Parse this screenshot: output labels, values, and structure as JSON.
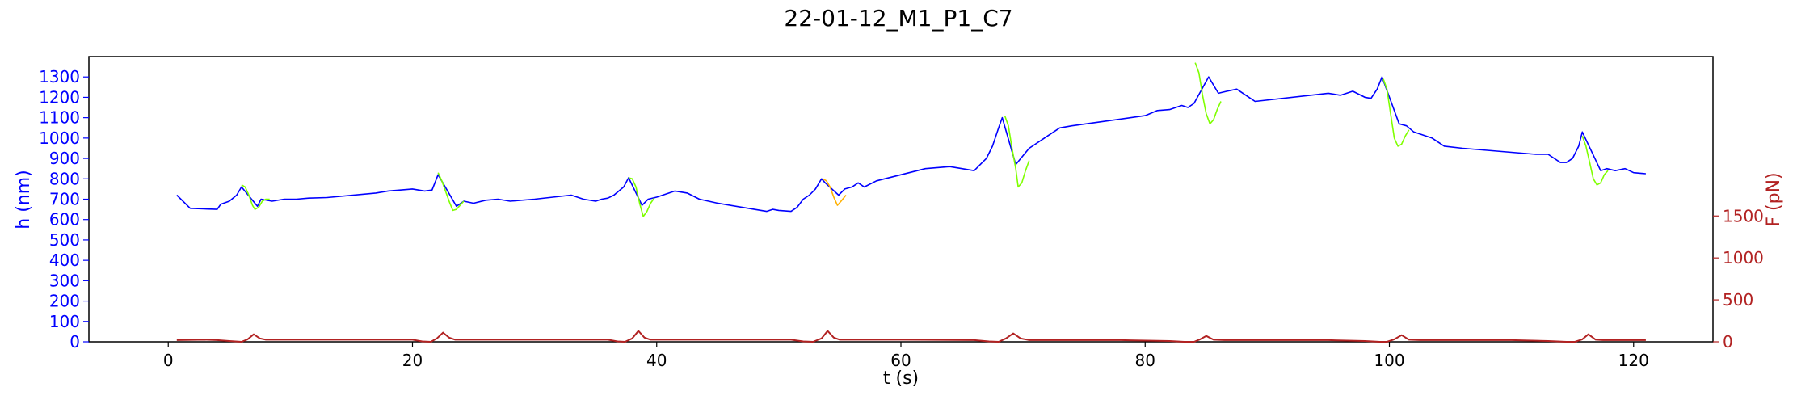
{
  "chart_data": {
    "type": "line",
    "title": "22-01-12_M1_P1_C7",
    "xlabel": "t (s)",
    "ylabel_left": "h (nm)",
    "ylabel_right": "F (pN)",
    "xlim": [
      -6.5,
      126.5
    ],
    "ylim_left": [
      0,
      1400
    ],
    "ylim_right": [
      0,
      3400
    ],
    "x_ticks": [
      0,
      20,
      40,
      60,
      80,
      100,
      120
    ],
    "y_ticks_left": [
      0,
      100,
      200,
      300,
      400,
      500,
      600,
      700,
      800,
      900,
      1000,
      1100,
      1200,
      1300
    ],
    "y_ticks_right": [
      0,
      500,
      1000,
      1500
    ],
    "colors": {
      "height_trace": "#0000ff",
      "approach_segments": "#7fff00",
      "highlighted_segment": "#ffb000",
      "force_trace": "#b22222",
      "left_axis": "#0000ff",
      "right_axis": "#b22222"
    },
    "series": [
      {
        "axis": "left",
        "color": "#0000ff",
        "x": [
          0.7,
          1.8,
          4.0,
          4.3,
          5.0,
          5.6,
          6.0,
          7.3,
          7.6,
          8.5,
          9.5,
          10.5,
          11.5,
          13.0,
          17.0,
          18.0,
          19.0,
          20.0,
          21.0,
          21.6,
          22.1,
          23.6,
          24.2,
          25.0,
          26.0,
          27.0,
          28.0,
          30.0,
          33.0,
          34.0,
          35.0,
          35.5,
          36.0,
          36.5,
          37.3,
          37.7,
          38.8,
          39.3,
          40.0,
          41.5,
          42.5,
          43.5,
          45.0,
          48.0,
          49.0,
          49.5,
          50.0,
          51.0,
          51.5,
          52.0,
          52.5,
          53.0,
          53.5,
          53.8,
          54.9,
          55.4,
          56.0,
          56.5,
          57.0,
          58.0,
          62.0,
          64.0,
          65.0,
          66.0,
          66.5,
          67.0,
          67.5,
          68.0,
          68.3,
          69.4,
          70.5,
          72.0,
          73.0,
          74.0,
          80.0,
          81.0,
          82.0,
          83.0,
          83.5,
          84.0,
          85.2,
          86.0,
          86.7,
          87.5,
          88.5,
          89.0,
          95.0,
          96.0,
          97.0,
          98.0,
          98.5,
          99.0,
          99.4,
          100.8,
          101.4,
          102.0,
          103.5,
          104.5,
          106.0,
          112.0,
          113.0,
          114.0,
          114.5,
          115.0,
          115.5,
          115.8,
          117.3,
          117.8,
          118.5,
          119.3,
          120.0,
          121.0
        ],
        "y": [
          720,
          655,
          650,
          675,
          690,
          720,
          760,
          665,
          700,
          690,
          700,
          700,
          705,
          708,
          730,
          740,
          745,
          750,
          740,
          745,
          820,
          665,
          690,
          680,
          695,
          700,
          690,
          700,
          720,
          700,
          690,
          700,
          705,
          720,
          760,
          805,
          670,
          700,
          710,
          740,
          730,
          700,
          680,
          650,
          640,
          650,
          645,
          640,
          660,
          700,
          720,
          750,
          800,
          780,
          720,
          750,
          760,
          780,
          760,
          790,
          850,
          860,
          850,
          840,
          870,
          900,
          960,
          1050,
          1100,
          870,
          950,
          1010,
          1050,
          1060,
          1110,
          1135,
          1140,
          1160,
          1150,
          1170,
          1300,
          1220,
          1230,
          1240,
          1200,
          1180,
          1220,
          1210,
          1230,
          1200,
          1195,
          1240,
          1300,
          1070,
          1060,
          1030,
          1000,
          960,
          950,
          920,
          920,
          880,
          880,
          900,
          960,
          1030,
          840,
          850,
          840,
          850,
          830,
          825
        ]
      },
      {
        "axis": "left",
        "color": "#7fff00",
        "x": [
          6.0,
          6.3,
          6.6,
          6.9,
          7.1,
          7.4,
          7.7,
          8.0,
          8.3
        ],
        "y": [
          770,
          760,
          720,
          670,
          650,
          660,
          690,
          700,
          700
        ]
      },
      {
        "axis": "left",
        "color": "#7fff00",
        "x": [
          22.1,
          22.4,
          22.7,
          23.0,
          23.3,
          23.6,
          23.9,
          24.2
        ],
        "y": [
          830,
          790,
          740,
          690,
          645,
          650,
          670,
          690
        ]
      },
      {
        "axis": "left",
        "color": "#7fff00",
        "x": [
          37.7,
          38.0,
          38.3,
          38.6,
          38.9,
          39.2,
          39.5,
          39.8
        ],
        "y": [
          805,
          800,
          760,
          680,
          615,
          640,
          680,
          705
        ]
      },
      {
        "axis": "left",
        "color": "#ffb000",
        "x": [
          53.6,
          53.9,
          54.2,
          54.5,
          54.8,
          55.1,
          55.5
        ],
        "y": [
          800,
          790,
          760,
          710,
          670,
          690,
          720
        ]
      },
      {
        "axis": "left",
        "color": "#7fff00",
        "x": [
          68.5,
          68.8,
          69.1,
          69.4,
          69.6,
          69.9,
          70.2,
          70.5
        ],
        "y": [
          1110,
          1060,
          950,
          850,
          760,
          780,
          840,
          890
        ]
      },
      {
        "axis": "left",
        "color": "#7fff00",
        "x": [
          84.1,
          84.4,
          84.7,
          85.0,
          85.3,
          85.6,
          85.9,
          86.2
        ],
        "y": [
          1370,
          1320,
          1210,
          1120,
          1070,
          1090,
          1140,
          1180
        ]
      },
      {
        "axis": "left",
        "color": "#7fff00",
        "x": [
          99.5,
          99.8,
          100.1,
          100.4,
          100.7,
          101.0,
          101.3,
          101.6
        ],
        "y": [
          1290,
          1240,
          1120,
          1000,
          960,
          970,
          1010,
          1040
        ]
      },
      {
        "axis": "left",
        "color": "#7fff00",
        "x": [
          115.8,
          116.1,
          116.4,
          116.7,
          117.0,
          117.3,
          117.6,
          117.9
        ],
        "y": [
          1010,
          960,
          880,
          800,
          770,
          780,
          820,
          840
        ]
      },
      {
        "axis": "right",
        "color": "#b22222",
        "x": [
          0.7,
          3.0,
          4.0,
          5.0,
          6.0,
          6.5,
          7.0,
          7.5,
          8.0,
          12.0,
          16.0,
          20.0,
          20.8,
          21.5,
          22.0,
          22.5,
          23.0,
          23.5,
          30.0,
          36.0,
          36.8,
          37.4,
          38.0,
          38.5,
          39.0,
          39.5,
          45.0,
          51.0,
          52.0,
          52.8,
          53.5,
          54.0,
          54.5,
          55.0,
          60.0,
          66.0,
          67.2,
          68.0,
          68.6,
          69.2,
          69.8,
          70.5,
          78.0,
          82.0,
          83.2,
          84.0,
          84.5,
          85.0,
          85.6,
          86.5,
          95.0,
          98.0,
          99.2,
          99.8,
          100.4,
          101.0,
          101.6,
          102.5,
          110.0,
          113.0,
          114.5,
          115.2,
          115.8,
          116.3,
          116.9,
          117.5,
          120.0,
          121.0
        ],
        "y": [
          20,
          25,
          20,
          10,
          0,
          30,
          90,
          40,
          25,
          25,
          25,
          25,
          5,
          0,
          40,
          110,
          50,
          25,
          25,
          25,
          5,
          0,
          40,
          130,
          50,
          25,
          25,
          25,
          5,
          0,
          40,
          130,
          50,
          25,
          25,
          20,
          5,
          0,
          40,
          100,
          40,
          20,
          20,
          10,
          0,
          0,
          30,
          70,
          25,
          20,
          20,
          10,
          0,
          0,
          30,
          80,
          25,
          20,
          20,
          10,
          0,
          0,
          30,
          90,
          25,
          20,
          20,
          20
        ]
      }
    ]
  }
}
